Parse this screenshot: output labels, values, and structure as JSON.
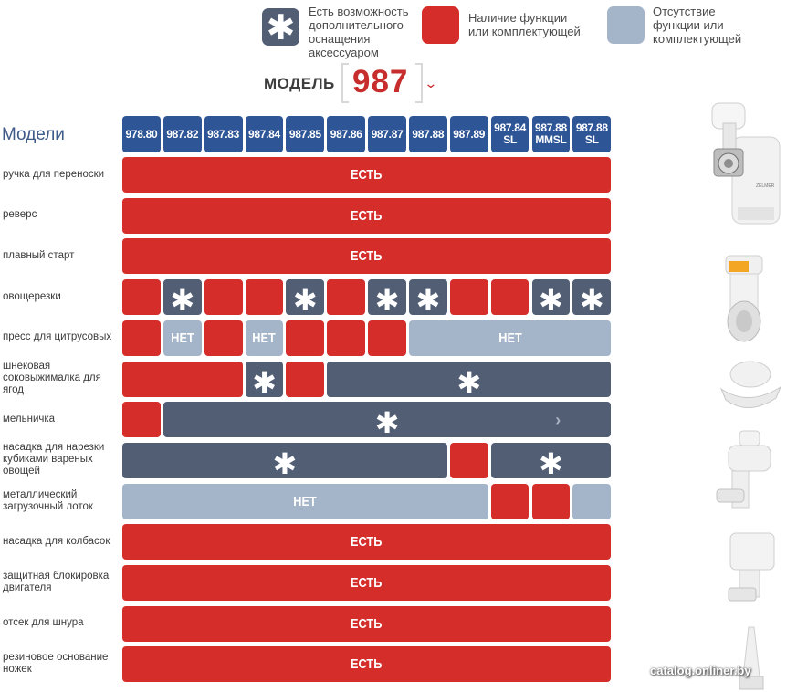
{
  "legend": {
    "optional_text_lines": [
      "Есть возможность",
      "дополнительного",
      "оснащения",
      "аксессуаром"
    ],
    "present_text_lines": [
      "Наличие функции",
      "или комплектующей"
    ],
    "absent_text_lines": [
      "Отсутствие",
      "функции или",
      "комплектующей"
    ],
    "asterisk": "✱"
  },
  "model_selector": {
    "label": "МОДЕЛЬ",
    "value": "987",
    "chevron": "⌄"
  },
  "models_title": "Модели",
  "models": [
    [
      "978.80"
    ],
    [
      "987.82"
    ],
    [
      "987.83"
    ],
    [
      "987.84"
    ],
    [
      "987.85"
    ],
    [
      "987.86"
    ],
    [
      "987.87"
    ],
    [
      "987.88"
    ],
    [
      "987.89"
    ],
    [
      "987.84",
      "SL"
    ],
    [
      "987.88",
      "MMSL"
    ],
    [
      "987.88",
      "SL"
    ]
  ],
  "labels": {
    "yes": "ЕСТЬ",
    "no": "НЕТ",
    "opt": "✱"
  },
  "rows": [
    {
      "label": [
        "ручка для переноски"
      ],
      "cells": [
        [
          0,
          12,
          "has",
          "ЕСТЬ"
        ]
      ]
    },
    {
      "label": [
        "реверс"
      ],
      "cells": [
        [
          0,
          12,
          "has",
          "ЕСТЬ"
        ]
      ]
    },
    {
      "label": [
        "плавный старт"
      ],
      "cells": [
        [
          0,
          12,
          "has",
          "ЕСТЬ"
        ]
      ]
    },
    {
      "label": [
        "овощерезки"
      ],
      "cells": [
        [
          0,
          1,
          "has",
          ""
        ],
        [
          1,
          1,
          "opt",
          "✱"
        ],
        [
          2,
          1,
          "has",
          ""
        ],
        [
          3,
          1,
          "has",
          ""
        ],
        [
          4,
          1,
          "opt",
          "✱"
        ],
        [
          5,
          1,
          "has",
          ""
        ],
        [
          6,
          1,
          "opt",
          "✱"
        ],
        [
          7,
          1,
          "opt",
          "✱"
        ],
        [
          8,
          1,
          "has",
          ""
        ],
        [
          9,
          1,
          "has",
          ""
        ],
        [
          10,
          1,
          "opt",
          "✱"
        ],
        [
          11,
          1,
          "opt",
          "✱"
        ]
      ]
    },
    {
      "label": [
        "пресс для цитрусовых"
      ],
      "cells": [
        [
          0,
          1,
          "has",
          ""
        ],
        [
          1,
          1,
          "no",
          "НЕТ"
        ],
        [
          2,
          1,
          "has",
          ""
        ],
        [
          3,
          1,
          "no",
          "НЕТ"
        ],
        [
          4,
          1,
          "has",
          ""
        ],
        [
          5,
          1,
          "has",
          ""
        ],
        [
          6,
          1,
          "has",
          ""
        ],
        [
          7,
          5,
          "no",
          "НЕТ"
        ]
      ]
    },
    {
      "label": [
        "шнековая",
        "соковыжималка для",
        "ягод"
      ],
      "cells": [
        [
          0,
          3,
          "has",
          ""
        ],
        [
          3,
          1,
          "opt",
          "✱"
        ],
        [
          4,
          1,
          "has",
          ""
        ],
        [
          5,
          7,
          "opt",
          "✱"
        ]
      ]
    },
    {
      "label": [
        "мельничка"
      ],
      "cells": [
        [
          0,
          1,
          "has",
          ""
        ],
        [
          1,
          11,
          "opt",
          "✱"
        ]
      ]
    },
    {
      "label": [
        "насадка для нарезки",
        "кубиками вареных",
        "овощей"
      ],
      "cells": [
        [
          0,
          8,
          "opt",
          "✱"
        ],
        [
          8,
          1,
          "has",
          ""
        ],
        [
          9,
          3,
          "opt",
          "✱"
        ]
      ]
    },
    {
      "label": [
        "металлический",
        "загрузочный лоток"
      ],
      "cells": [
        [
          0,
          9,
          "no",
          "НЕТ"
        ],
        [
          9,
          1,
          "has",
          ""
        ],
        [
          10,
          1,
          "has",
          ""
        ],
        [
          11,
          1,
          "no",
          ""
        ]
      ]
    },
    {
      "label": [
        "насадка для колбасок"
      ],
      "cells": [
        [
          0,
          12,
          "has",
          "ЕСТЬ"
        ]
      ]
    },
    {
      "label": [
        "защитная блокировка",
        "двигателя"
      ],
      "cells": [
        [
          0,
          12,
          "has",
          "ЕСТЬ"
        ]
      ]
    },
    {
      "label": [
        "отсек для шнура"
      ],
      "cells": [
        [
          0,
          12,
          "has",
          "ЕСТЬ"
        ]
      ]
    },
    {
      "label": [
        "резиновое основание",
        "ножек"
      ],
      "cells": [
        [
          0,
          12,
          "has",
          "ЕСТЬ"
        ]
      ]
    }
  ],
  "scroll_arrow": "›",
  "watermark": "catalog.onliner.by",
  "colors": {
    "has": "#d42d2a",
    "opt": "#525e74",
    "no": "#a5b5c9",
    "header": "#2e5596"
  }
}
